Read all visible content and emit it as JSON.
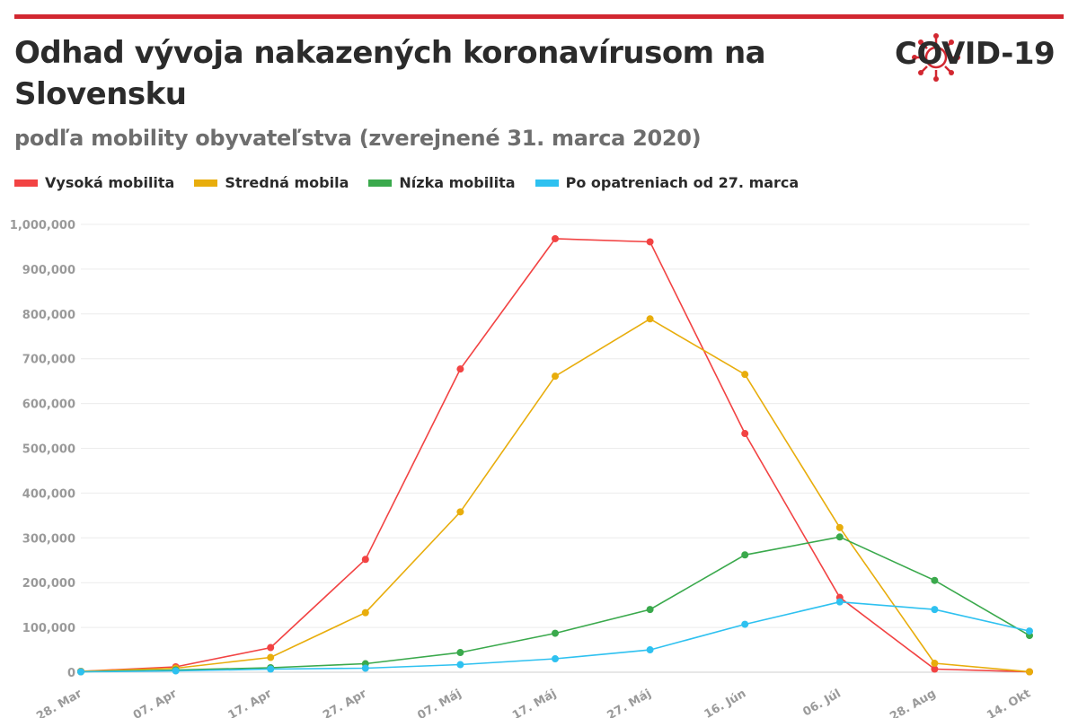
{
  "header": {
    "title": "Odhad vývoja nakazených koronavírusom na Slovensku",
    "subtitle": "podľa mobility obyvateľstva (zverejnené 31. marca 2020)",
    "logo_text": "COVID-19"
  },
  "colors": {
    "accent_bar": "#d22730",
    "high": "#f24343",
    "medium": "#e8ad0c",
    "low": "#3aa94c",
    "after_measures": "#2ec1f0"
  },
  "chart_data": {
    "type": "line",
    "categories": [
      "28. Mar",
      "07. Apr",
      "17. Apr",
      "27. Apr",
      "07. Máj",
      "17. Máj",
      "27. Máj",
      "16. Jún",
      "06. Júl",
      "28. Aug",
      "14. Okt"
    ],
    "series": [
      {
        "name": "Vysoká mobilita",
        "color": "#f24343",
        "values": [
          2000,
          12000,
          55000,
          252000,
          677000,
          968000,
          961000,
          533000,
          167000,
          7000,
          1000
        ]
      },
      {
        "name": "Stredná mobila",
        "color": "#e8ad0c",
        "values": [
          2000,
          9000,
          33000,
          133000,
          358000,
          661000,
          789000,
          665000,
          323000,
          20000,
          1000
        ]
      },
      {
        "name": "Nízka mobilita",
        "color": "#3aa94c",
        "values": [
          1000,
          5000,
          10000,
          19000,
          44000,
          87000,
          140000,
          262000,
          302000,
          205000,
          82000
        ]
      },
      {
        "name": "Po opatreniach od 27. marca",
        "color": "#2ec1f0",
        "values": [
          1000,
          3000,
          7000,
          9000,
          17000,
          30000,
          50000,
          107000,
          157000,
          140000,
          92000
        ]
      }
    ],
    "y_ticks": [
      "0",
      "100,000",
      "200,000",
      "300,000",
      "400,000",
      "500,000",
      "600,000",
      "700,000",
      "800,000",
      "900,000",
      "1,000,000"
    ],
    "ylim": [
      0,
      1000000
    ],
    "grid": true,
    "legend_position": "top-left"
  }
}
